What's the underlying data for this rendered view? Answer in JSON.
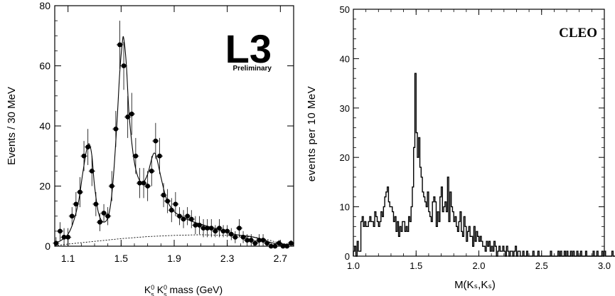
{
  "chart_data": [
    {
      "type": "scatter",
      "panel": "left",
      "xlabel": {
        "base": "K",
        "sup1": "0",
        "sub1": "s",
        "sup2": "0",
        "sub2": "s",
        "tail": " mass (GeV)"
      },
      "ylabel": "Events / 30 MeV",
      "xlim": [
        1.0,
        2.8
      ],
      "ylim": [
        0,
        80
      ],
      "xticks": [
        1.1,
        1.5,
        1.9,
        2.3,
        2.7
      ],
      "xtick_labels": [
        "1.1",
        "1.5",
        "1.9",
        "2.3",
        "2.7"
      ],
      "yticks": [
        0,
        20,
        40,
        60,
        80
      ],
      "ytick_labels": [
        "0",
        "20",
        "40",
        "60",
        "80"
      ],
      "logo": "L3",
      "logo_sub": "Preliminary",
      "legend": "none",
      "grid": false,
      "points": [
        {
          "x": 1.01,
          "y": 1,
          "e": 2
        },
        {
          "x": 1.04,
          "y": 5,
          "e": 3
        },
        {
          "x": 1.07,
          "y": 3,
          "e": 3
        },
        {
          "x": 1.1,
          "y": 3,
          "e": 3
        },
        {
          "x": 1.13,
          "y": 10,
          "e": 3
        },
        {
          "x": 1.16,
          "y": 14,
          "e": 4
        },
        {
          "x": 1.19,
          "y": 18,
          "e": 5
        },
        {
          "x": 1.22,
          "y": 30,
          "e": 5
        },
        {
          "x": 1.25,
          "y": 33,
          "e": 6
        },
        {
          "x": 1.28,
          "y": 25,
          "e": 5
        },
        {
          "x": 1.31,
          "y": 14,
          "e": 4
        },
        {
          "x": 1.34,
          "y": 8,
          "e": 3
        },
        {
          "x": 1.37,
          "y": 11,
          "e": 3
        },
        {
          "x": 1.4,
          "y": 10,
          "e": 3
        },
        {
          "x": 1.43,
          "y": 20,
          "e": 5
        },
        {
          "x": 1.46,
          "y": 39,
          "e": 6
        },
        {
          "x": 1.49,
          "y": 67,
          "e": 8
        },
        {
          "x": 1.52,
          "y": 60,
          "e": 8
        },
        {
          "x": 1.55,
          "y": 43,
          "e": 7
        },
        {
          "x": 1.58,
          "y": 44,
          "e": 7
        },
        {
          "x": 1.61,
          "y": 30,
          "e": 6
        },
        {
          "x": 1.64,
          "y": 21,
          "e": 5
        },
        {
          "x": 1.67,
          "y": 21,
          "e": 5
        },
        {
          "x": 1.7,
          "y": 20,
          "e": 5
        },
        {
          "x": 1.73,
          "y": 25,
          "e": 5
        },
        {
          "x": 1.76,
          "y": 35,
          "e": 6
        },
        {
          "x": 1.79,
          "y": 30,
          "e": 6
        },
        {
          "x": 1.82,
          "y": 17,
          "e": 4
        },
        {
          "x": 1.85,
          "y": 15,
          "e": 4
        },
        {
          "x": 1.88,
          "y": 12,
          "e": 4
        },
        {
          "x": 1.91,
          "y": 14,
          "e": 4
        },
        {
          "x": 1.94,
          "y": 10,
          "e": 3
        },
        {
          "x": 1.97,
          "y": 9,
          "e": 3
        },
        {
          "x": 2.0,
          "y": 10,
          "e": 3
        },
        {
          "x": 2.03,
          "y": 9,
          "e": 3
        },
        {
          "x": 2.06,
          "y": 7,
          "e": 3
        },
        {
          "x": 2.09,
          "y": 7,
          "e": 3
        },
        {
          "x": 2.12,
          "y": 6,
          "e": 3
        },
        {
          "x": 2.15,
          "y": 6,
          "e": 3
        },
        {
          "x": 2.18,
          "y": 6,
          "e": 3
        },
        {
          "x": 2.21,
          "y": 5,
          "e": 2
        },
        {
          "x": 2.24,
          "y": 6,
          "e": 3
        },
        {
          "x": 2.27,
          "y": 5,
          "e": 2
        },
        {
          "x": 2.3,
          "y": 5,
          "e": 2
        },
        {
          "x": 2.33,
          "y": 4,
          "e": 2
        },
        {
          "x": 2.36,
          "y": 3,
          "e": 2
        },
        {
          "x": 2.39,
          "y": 6,
          "e": 3
        },
        {
          "x": 2.42,
          "y": 3,
          "e": 2
        },
        {
          "x": 2.45,
          "y": 2,
          "e": 2
        },
        {
          "x": 2.48,
          "y": 2,
          "e": 2
        },
        {
          "x": 2.51,
          "y": 1,
          "e": 1
        },
        {
          "x": 2.54,
          "y": 2,
          "e": 2
        },
        {
          "x": 2.57,
          "y": 2,
          "e": 2
        },
        {
          "x": 2.6,
          "y": 1,
          "e": 1
        },
        {
          "x": 2.63,
          "y": 0,
          "e": 1
        },
        {
          "x": 2.66,
          "y": 0,
          "e": 1
        },
        {
          "x": 2.69,
          "y": 1,
          "e": 1
        },
        {
          "x": 2.72,
          "y": 0,
          "e": 1
        },
        {
          "x": 2.75,
          "y": 0,
          "e": 1
        },
        {
          "x": 2.78,
          "y": 1,
          "e": 1
        }
      ],
      "fit_curve": [
        [
          1.0,
          1
        ],
        [
          1.05,
          2
        ],
        [
          1.1,
          4
        ],
        [
          1.14,
          8
        ],
        [
          1.18,
          15
        ],
        [
          1.21,
          24
        ],
        [
          1.24,
          32
        ],
        [
          1.26,
          34
        ],
        [
          1.28,
          30
        ],
        [
          1.3,
          20
        ],
        [
          1.33,
          11
        ],
        [
          1.37,
          8
        ],
        [
          1.41,
          11
        ],
        [
          1.44,
          22
        ],
        [
          1.47,
          42
        ],
        [
          1.49,
          58
        ],
        [
          1.51,
          68
        ],
        [
          1.52,
          69
        ],
        [
          1.54,
          60
        ],
        [
          1.56,
          44
        ],
        [
          1.59,
          31
        ],
        [
          1.62,
          24
        ],
        [
          1.66,
          21
        ],
        [
          1.7,
          24
        ],
        [
          1.73,
          29
        ],
        [
          1.75,
          31
        ],
        [
          1.77,
          29
        ],
        [
          1.8,
          23
        ],
        [
          1.84,
          16
        ],
        [
          1.89,
          12
        ],
        [
          1.95,
          10
        ],
        [
          2.05,
          8
        ],
        [
          2.2,
          6
        ],
        [
          2.35,
          4
        ],
        [
          2.5,
          3
        ],
        [
          2.65,
          1
        ],
        [
          2.8,
          0.5
        ]
      ],
      "background_curve": [
        [
          1.0,
          0.2
        ],
        [
          1.1,
          0.7
        ],
        [
          1.3,
          1.6
        ],
        [
          1.5,
          2.5
        ],
        [
          1.7,
          3.2
        ],
        [
          1.9,
          3.6
        ],
        [
          2.1,
          3.8
        ],
        [
          2.3,
          3.6
        ],
        [
          2.5,
          3.0
        ],
        [
          2.6,
          2.2
        ],
        [
          2.7,
          1.0
        ],
        [
          2.8,
          0.3
        ]
      ]
    },
    {
      "type": "histogram",
      "panel": "right",
      "title": "CLEO",
      "xlabel": "M(Kₛ,Kₛ)",
      "ylabel": "events per 10 MeV",
      "xlim": [
        1.0,
        3.0
      ],
      "ylim": [
        0,
        50
      ],
      "xticks": [
        1.0,
        1.5,
        2.0,
        2.5,
        3.0
      ],
      "xtick_labels": [
        "1.0",
        "1.5",
        "2.0",
        "2.5",
        "3.0"
      ],
      "yticks": [
        0,
        10,
        20,
        30,
        40,
        50
      ],
      "ytick_labels": [
        "0",
        "10",
        "20",
        "30",
        "40",
        "50"
      ],
      "bin_start": 1.0,
      "bin_width": 0.01,
      "legend": "none",
      "grid": false,
      "counts": [
        1,
        2,
        0,
        3,
        1,
        1,
        7,
        8,
        6,
        7,
        6,
        6,
        7,
        8,
        7,
        7,
        6,
        9,
        8,
        7,
        6,
        7,
        9,
        8,
        10,
        12,
        13,
        14,
        11,
        10,
        10,
        9,
        7,
        8,
        5,
        7,
        4,
        6,
        5,
        7,
        7,
        5,
        6,
        5,
        8,
        7,
        10,
        14,
        22,
        37,
        25,
        20,
        24,
        18,
        16,
        13,
        12,
        11,
        10,
        13,
        9,
        8,
        7,
        11,
        12,
        11,
        6,
        9,
        7,
        12,
        14,
        9,
        10,
        11,
        9,
        16,
        7,
        13,
        10,
        9,
        7,
        8,
        6,
        5,
        7,
        9,
        5,
        4,
        8,
        6,
        3,
        5,
        6,
        4,
        4,
        2,
        6,
        3,
        5,
        4,
        3,
        4,
        3,
        2,
        2,
        1,
        3,
        2,
        3,
        1,
        2,
        1,
        3,
        2,
        0,
        1,
        2,
        1,
        1,
        2,
        1,
        0,
        2,
        1,
        0,
        1,
        1,
        0,
        1,
        2,
        0,
        1,
        1,
        0,
        0,
        1,
        0,
        0,
        1,
        0,
        0,
        0,
        0,
        1,
        0,
        0,
        0,
        1,
        0,
        0,
        0,
        0,
        0,
        0,
        0,
        0,
        0,
        1,
        0,
        0,
        0,
        0,
        0,
        1,
        0,
        1,
        0,
        0,
        1,
        0,
        1,
        0,
        0,
        1,
        0,
        1,
        0,
        0,
        1,
        0,
        0,
        1,
        0,
        0,
        0,
        1,
        0,
        0,
        0,
        0,
        0,
        1,
        0,
        0,
        1,
        0,
        0,
        0,
        1,
        0,
        1,
        0,
        0,
        0,
        0,
        0,
        1,
        0,
        0,
        0
      ]
    }
  ]
}
